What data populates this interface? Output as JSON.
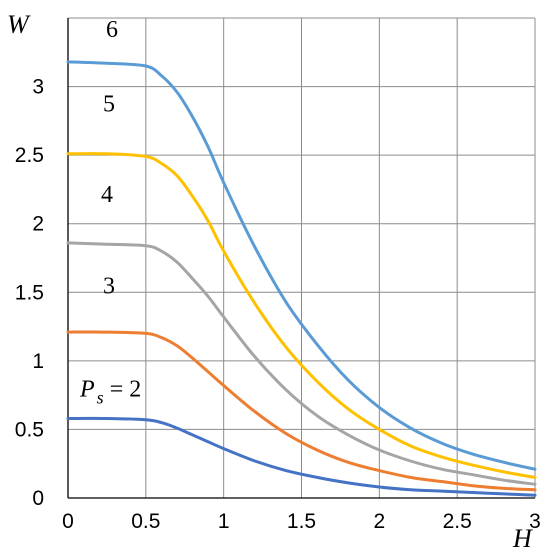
{
  "chart_data": {
    "type": "line",
    "xlabel": "H",
    "ylabel": "W",
    "xlim": [
      0,
      3
    ],
    "ylim": [
      0,
      3.5
    ],
    "xticks": [
      "0",
      "0.5",
      "1",
      "1.5",
      "2",
      "2.5",
      "3"
    ],
    "yticks": [
      "0",
      "0.5",
      "1",
      "1.5",
      "2",
      "2.5",
      "3"
    ],
    "grid": true,
    "series": [
      {
        "name": "P",
        "subscript": "s",
        "suffix": " = 2",
        "color": "#4472c4",
        "x": [
          0,
          0.25,
          0.5,
          0.6,
          0.7,
          0.8,
          0.9,
          1.0,
          1.2,
          1.4,
          1.6,
          1.8,
          2.0,
          2.2,
          2.4,
          2.6,
          2.8,
          3.0
        ],
        "y": [
          0.58,
          0.58,
          0.57,
          0.55,
          0.51,
          0.46,
          0.41,
          0.36,
          0.27,
          0.2,
          0.15,
          0.11,
          0.08,
          0.06,
          0.05,
          0.04,
          0.03,
          0.02
        ]
      },
      {
        "name": "3",
        "color": "#ed7d31",
        "x": [
          0,
          0.25,
          0.5,
          0.6,
          0.7,
          0.8,
          0.9,
          1.0,
          1.2,
          1.4,
          1.6,
          1.8,
          2.0,
          2.2,
          2.4,
          2.6,
          2.8,
          3.0
        ],
        "y": [
          1.21,
          1.21,
          1.2,
          1.17,
          1.11,
          1.02,
          0.92,
          0.82,
          0.63,
          0.47,
          0.35,
          0.26,
          0.2,
          0.15,
          0.12,
          0.09,
          0.07,
          0.06
        ]
      },
      {
        "name": "4",
        "color": "#a5a5a5",
        "x": [
          0,
          0.25,
          0.5,
          0.6,
          0.7,
          0.8,
          0.9,
          1.0,
          1.2,
          1.4,
          1.6,
          1.8,
          2.0,
          2.2,
          2.4,
          2.6,
          2.8,
          3.0
        ],
        "y": [
          1.86,
          1.85,
          1.84,
          1.8,
          1.72,
          1.6,
          1.47,
          1.32,
          1.03,
          0.79,
          0.6,
          0.46,
          0.35,
          0.27,
          0.21,
          0.17,
          0.13,
          0.1
        ]
      },
      {
        "name": "5",
        "color": "#ffc000",
        "x": [
          0,
          0.25,
          0.5,
          0.6,
          0.7,
          0.8,
          0.9,
          1.0,
          1.2,
          1.4,
          1.6,
          1.8,
          2.0,
          2.2,
          2.4,
          2.6,
          2.8,
          3.0
        ],
        "y": [
          2.51,
          2.51,
          2.49,
          2.44,
          2.35,
          2.2,
          2.02,
          1.8,
          1.42,
          1.1,
          0.85,
          0.65,
          0.5,
          0.38,
          0.3,
          0.24,
          0.19,
          0.15
        ]
      },
      {
        "name": "6",
        "color": "#5b9bd5",
        "x": [
          0,
          0.25,
          0.5,
          0.6,
          0.7,
          0.8,
          0.9,
          1.0,
          1.2,
          1.4,
          1.6,
          1.8,
          2.0,
          2.2,
          2.4,
          2.6,
          2.8,
          3.0
        ],
        "y": [
          3.18,
          3.17,
          3.15,
          3.08,
          2.96,
          2.78,
          2.56,
          2.3,
          1.83,
          1.43,
          1.12,
          0.86,
          0.66,
          0.51,
          0.4,
          0.32,
          0.26,
          0.21
        ]
      }
    ]
  }
}
